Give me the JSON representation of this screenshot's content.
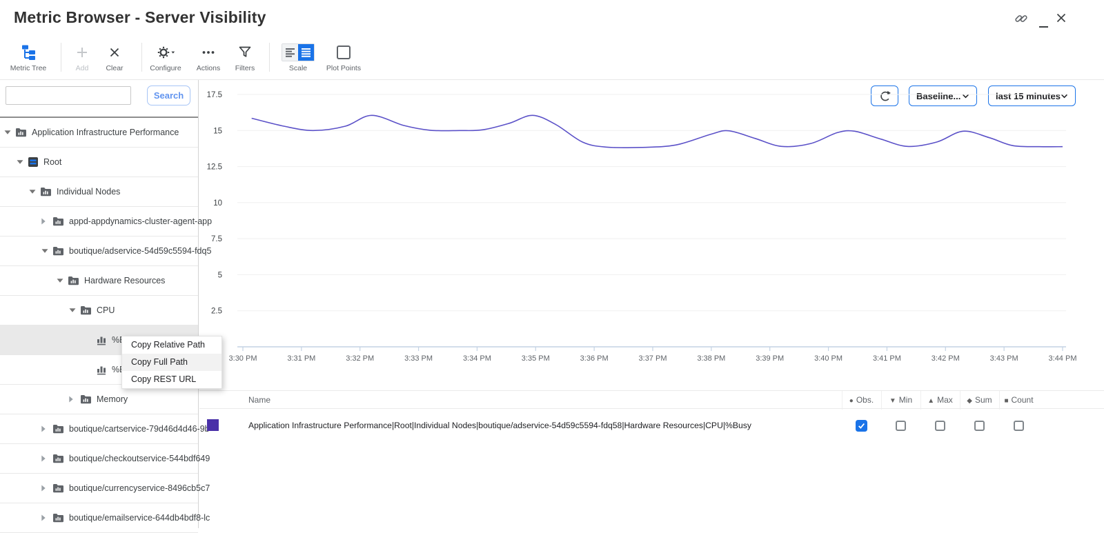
{
  "window": {
    "title": "Metric Browser - Server Visibility"
  },
  "toolbar": {
    "metric_tree": "Metric Tree",
    "add": "Add",
    "clear": "Clear",
    "configure": "Configure",
    "actions": "Actions",
    "filters": "Filters",
    "scale": "Scale",
    "plot_points": "Plot Points",
    "baseline": "Baseline...",
    "time_range": "last 15 minutes"
  },
  "sidebar": {
    "search_value": "",
    "search_placeholder": "",
    "search_button": "Search",
    "tree": [
      {
        "label": "Application Infrastructure Performance",
        "level": 0,
        "caret": "down",
        "icon": "folder-metric",
        "selected": false
      },
      {
        "label": "Root",
        "level": 1,
        "caret": "down",
        "icon": "server",
        "selected": false
      },
      {
        "label": "Individual Nodes",
        "level": 2,
        "caret": "down",
        "icon": "folder-metric",
        "selected": false
      },
      {
        "label": "appd-appdynamics-cluster-agent-app",
        "level": 3,
        "caret": "right",
        "icon": "folder-metric",
        "selected": false
      },
      {
        "label": "boutique/adservice-54d59c5594-fdq5",
        "level": 3,
        "caret": "down",
        "icon": "folder-metric",
        "selected": false
      },
      {
        "label": "Hardware Resources",
        "level": 4,
        "caret": "down",
        "icon": "folder-metric",
        "selected": false
      },
      {
        "label": "CPU",
        "level": 5,
        "caret": "down",
        "icon": "folder-metric",
        "selected": false
      },
      {
        "label": "%Bu",
        "level": 6,
        "caret": null,
        "icon": "metric",
        "selected": true
      },
      {
        "label": "%Bu",
        "level": 6,
        "caret": null,
        "icon": "metric",
        "selected": false
      },
      {
        "label": "Memory",
        "level": 5,
        "caret": "right",
        "icon": "folder-metric",
        "selected": false
      },
      {
        "label": "boutique/cartservice-79d46d4d46-9b",
        "level": 3,
        "caret": "right",
        "icon": "folder-metric",
        "selected": false
      },
      {
        "label": "boutique/checkoutservice-544bdf649",
        "level": 3,
        "caret": "right",
        "icon": "folder-metric",
        "selected": false
      },
      {
        "label": "boutique/currencyservice-8496cb5c7",
        "level": 3,
        "caret": "right",
        "icon": "folder-metric",
        "selected": false
      },
      {
        "label": "boutique/emailservice-644db4bdf8-lc",
        "level": 3,
        "caret": "right",
        "icon": "folder-metric",
        "selected": false
      }
    ]
  },
  "context_menu": {
    "items": [
      "Copy Relative Path",
      "Copy Full Path",
      "Copy REST URL"
    ],
    "hover_index": 1
  },
  "chart_data": {
    "type": "line",
    "title": "",
    "xlabel": "",
    "ylabel": "",
    "ylim": [
      0,
      17.5
    ],
    "yticks": [
      0,
      2.5,
      5,
      7.5,
      10,
      12.5,
      15,
      17.5
    ],
    "xtick_labels": [
      "3:30 PM",
      "3:31 PM",
      "3:32 PM",
      "3:33 PM",
      "3:34 PM",
      "3:35 PM",
      "3:36 PM",
      "3:37 PM",
      "3:38 PM",
      "3:39 PM",
      "3:40 PM",
      "3:41 PM",
      "3:42 PM",
      "3:43 PM",
      "3:44 PM"
    ],
    "x_unit": "minutes after 3:30 PM",
    "grid": true,
    "legend_position": "none",
    "series": [
      {
        "name": "Application Infrastructure Performance|Root|Individual Nodes|boutique/adservice-54d59c5594-fdq58|Hardware Resources|CPU|%Busy",
        "color": "#5b51c8",
        "points": [
          [
            0.15,
            15.85
          ],
          [
            0.7,
            15.3
          ],
          [
            1.2,
            15.0
          ],
          [
            1.75,
            15.3
          ],
          [
            2.2,
            16.05
          ],
          [
            2.75,
            15.35
          ],
          [
            3.2,
            15.02
          ],
          [
            3.7,
            15.0
          ],
          [
            4.1,
            15.05
          ],
          [
            4.55,
            15.5
          ],
          [
            4.95,
            16.05
          ],
          [
            5.35,
            15.4
          ],
          [
            5.8,
            14.2
          ],
          [
            6.2,
            13.85
          ],
          [
            6.8,
            13.83
          ],
          [
            7.4,
            14.0
          ],
          [
            8.0,
            14.75
          ],
          [
            8.3,
            14.98
          ],
          [
            8.75,
            14.45
          ],
          [
            9.2,
            13.9
          ],
          [
            9.7,
            14.1
          ],
          [
            10.15,
            14.85
          ],
          [
            10.45,
            14.95
          ],
          [
            10.9,
            14.4
          ],
          [
            11.35,
            13.9
          ],
          [
            11.85,
            14.2
          ],
          [
            12.3,
            14.95
          ],
          [
            12.75,
            14.5
          ],
          [
            13.15,
            13.95
          ],
          [
            13.6,
            13.88
          ],
          [
            14.0,
            13.88
          ]
        ]
      }
    ]
  },
  "table": {
    "name_header": "Name",
    "stat_columns": [
      {
        "label": "Obs.",
        "glyph": "●"
      },
      {
        "label": "Min",
        "glyph": "▼"
      },
      {
        "label": "Max",
        "glyph": "▲"
      },
      {
        "label": "Sum",
        "glyph": "◆"
      },
      {
        "label": "Count",
        "glyph": "■"
      }
    ],
    "rows": [
      {
        "name": "Application Infrastructure Performance|Root|Individual Nodes|boutique/adservice-54d59c5594-fdq58|Hardware Resources|CPU|%Busy",
        "swatch_color": "#4930a8",
        "checks": [
          true,
          false,
          false,
          false,
          false
        ]
      }
    ]
  },
  "colors": {
    "accent_blue": "#1a73e8",
    "line": "#5b51c8",
    "swatch": "#4930a8"
  }
}
